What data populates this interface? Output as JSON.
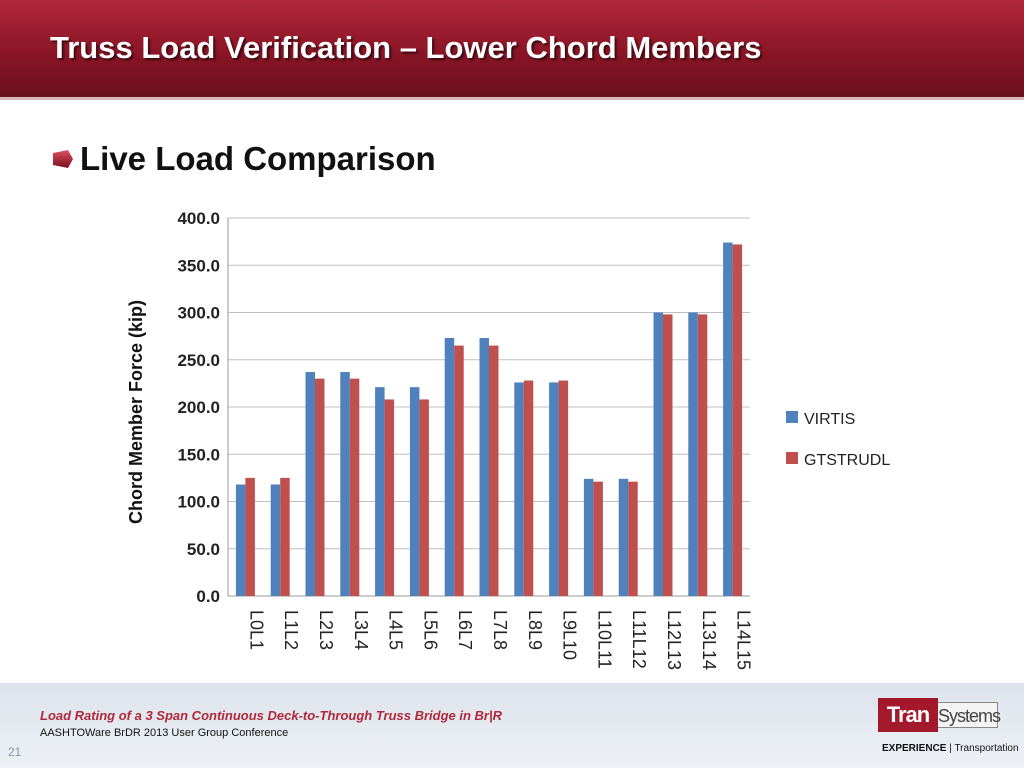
{
  "header": {
    "title": "Truss Load Verification – Lower Chord Members"
  },
  "bullet": {
    "text": "Live Load Comparison"
  },
  "footer": {
    "title": "Load Rating of a 3 Span Continuous Deck-to-Through Truss Bridge in Br|R",
    "subtitle": "AASHTOWare BrDR 2013 User Group Conference",
    "page_number": "21",
    "logo_left": "Tran",
    "logo_right": "Systems",
    "tagline_bold": "EXPERIENCE",
    "tagline_rest": " | Transportation"
  },
  "colors": {
    "header": "#8a1526",
    "virtis": "#4f81bd",
    "gtstrudl": "#c0504d",
    "footer_title": "#b0283a"
  },
  "chart_data": {
    "type": "bar",
    "ylabel": "Chord Member Force (kip)",
    "xlabel": "",
    "ylim": [
      0,
      400
    ],
    "yticks": [
      "0.0",
      "50.0",
      "100.0",
      "150.0",
      "200.0",
      "250.0",
      "300.0",
      "350.0",
      "400.0"
    ],
    "grid": true,
    "legend_position": "right",
    "categories": [
      "L0L1",
      "L1L2",
      "L2L3",
      "L3L4",
      "L4L5",
      "L5L6",
      "L6L7",
      "L7L8",
      "L8L9",
      "L9L10",
      "L10L11",
      "L11L12",
      "L12L13",
      "L13L14",
      "L14L15"
    ],
    "series": [
      {
        "name": "VIRTIS",
        "color": "#4f81bd",
        "values": [
          118,
          118,
          237,
          237,
          221,
          221,
          273,
          273,
          226,
          226,
          124,
          124,
          300,
          300,
          374
        ]
      },
      {
        "name": "GTSTRUDL",
        "color": "#c0504d",
        "values": [
          125,
          125,
          230,
          230,
          208,
          208,
          265,
          265,
          228,
          228,
          121,
          121,
          298,
          298,
          372
        ]
      }
    ]
  }
}
